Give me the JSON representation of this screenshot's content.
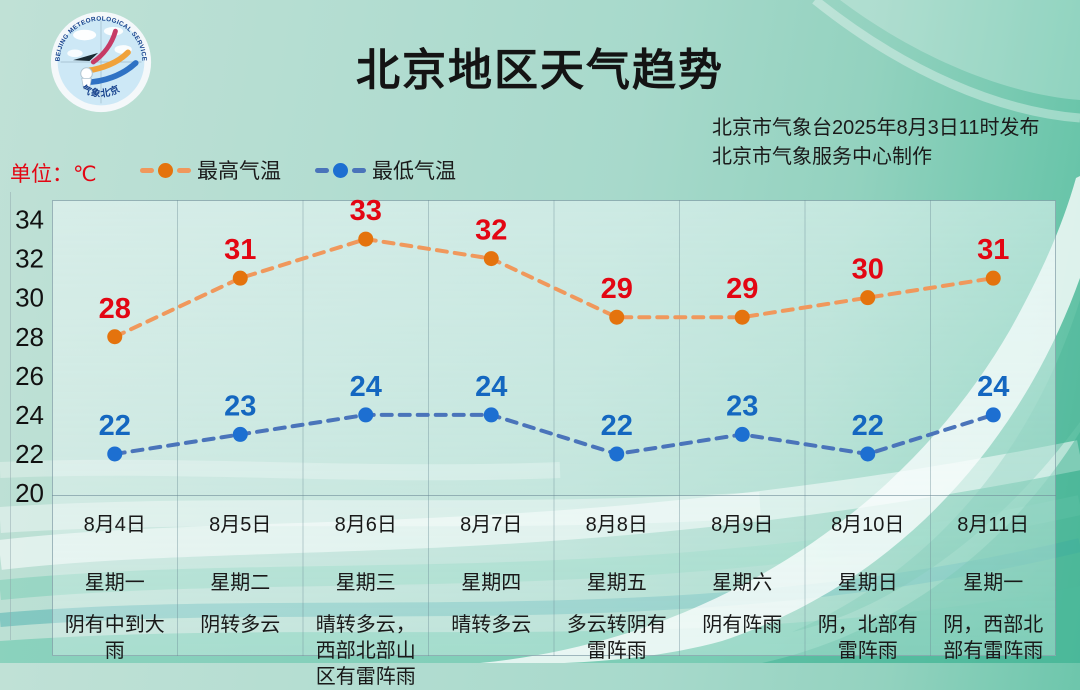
{
  "header": {
    "title": "北京地区天气趋势",
    "issued_line1": "北京市气象台2025年8月3日11时发布",
    "issued_line2": "北京市气象服务中心制作"
  },
  "logo": {
    "ring_text": "BEIJING METEOROLOGICAL SERVICE",
    "bottom_text": "气象北京"
  },
  "unit_label": "单位：℃",
  "legend": {
    "high": "最高气温",
    "low": "最低气温"
  },
  "colors": {
    "title": "#141414",
    "unit_red": "#e30613",
    "frame": "rgba(110,140,152,0.6)",
    "gridline": "rgba(108,140,150,0.4)",
    "ytick": "#111111"
  },
  "chart_data": {
    "type": "line",
    "title": "北京地区天气趋势",
    "unit": "℃",
    "x": [
      "8月4日",
      "8月5日",
      "8月6日",
      "8月7日",
      "8月8日",
      "8月9日",
      "8月10日",
      "8月11日"
    ],
    "weekdays": [
      "星期一",
      "星期二",
      "星期三",
      "星期四",
      "星期五",
      "星期六",
      "星期日",
      "星期一"
    ],
    "weather": [
      "阴有中到大雨",
      "阴转多云",
      "晴转多云，西部北部山区有雷阵雨",
      "晴转多云",
      "多云转阴有雷阵雨",
      "阴有阵雨",
      "阴，北部有雷阵雨",
      "阴，西部北部有雷阵雨"
    ],
    "series": [
      {
        "name": "最高气温",
        "values": [
          28,
          31,
          33,
          32,
          29,
          29,
          30,
          31
        ],
        "line_color": "#f0985c",
        "dot_color": "#e4730d",
        "label_color": "#e30613"
      },
      {
        "name": "最低气温",
        "values": [
          22,
          23,
          24,
          24,
          22,
          23,
          22,
          24
        ],
        "line_color": "#4a74ba",
        "dot_color": "#1d6fd1",
        "label_color": "#1467c0"
      }
    ],
    "yticks": [
      34,
      32,
      30,
      28,
      26,
      24,
      22,
      20
    ],
    "ylim": [
      19.9,
      35
    ],
    "grid": "vertical-only",
    "legend_position": "top-left"
  }
}
